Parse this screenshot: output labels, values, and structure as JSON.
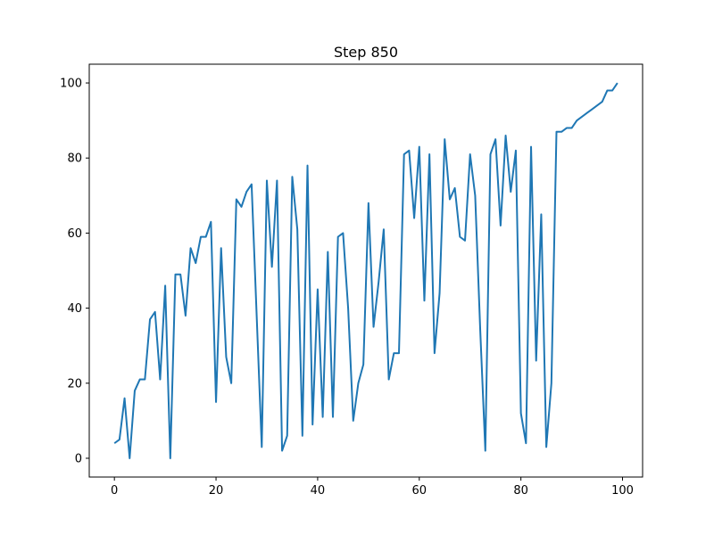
{
  "chart_data": {
    "type": "line",
    "title": "Step 850",
    "xlabel": "",
    "ylabel": "",
    "xlim": [
      -4.95,
      103.95
    ],
    "ylim": [
      -5,
      105
    ],
    "xticks": [
      0,
      20,
      40,
      60,
      80,
      100
    ],
    "yticks": [
      0,
      20,
      40,
      60,
      80,
      100
    ],
    "grid": false,
    "legend": "none",
    "series": [
      {
        "color": "#1f77b4",
        "x": [
          0,
          1,
          2,
          3,
          4,
          5,
          6,
          7,
          8,
          9,
          10,
          11,
          12,
          13,
          14,
          15,
          16,
          17,
          18,
          19,
          20,
          21,
          22,
          23,
          24,
          25,
          26,
          27,
          28,
          29,
          30,
          31,
          32,
          33,
          34,
          35,
          36,
          37,
          38,
          39,
          40,
          41,
          42,
          43,
          44,
          45,
          46,
          47,
          48,
          49,
          50,
          51,
          52,
          53,
          54,
          55,
          56,
          57,
          58,
          59,
          60,
          61,
          62,
          63,
          64,
          65,
          66,
          67,
          68,
          69,
          70,
          71,
          72,
          73,
          74,
          75,
          76,
          77,
          78,
          79,
          80,
          81,
          82,
          83,
          84,
          85,
          86,
          87,
          88,
          89,
          90,
          91,
          92,
          93,
          94,
          95,
          96,
          97,
          98,
          99
        ],
        "y": [
          4,
          5,
          16,
          0,
          18,
          21,
          21,
          37,
          39,
          21,
          46,
          0,
          49,
          49,
          38,
          56,
          52,
          59,
          59,
          63,
          15,
          56,
          27,
          20,
          69,
          67,
          71,
          73,
          38,
          3,
          74,
          51,
          74,
          2,
          6,
          75,
          61,
          6,
          78,
          9,
          45,
          11,
          55,
          11,
          59,
          60,
          40,
          10,
          20,
          25,
          68,
          35,
          47,
          61,
          21,
          28,
          28,
          81,
          82,
          64,
          83,
          42,
          81,
          28,
          44,
          85,
          69,
          72,
          59,
          58,
          81,
          70,
          34,
          2,
          81,
          85,
          62,
          86,
          71,
          82,
          12,
          4,
          83,
          26,
          65,
          3,
          20,
          87,
          87,
          88,
          88,
          90,
          91,
          92,
          93,
          94,
          95,
          98,
          98,
          100
        ]
      }
    ]
  }
}
